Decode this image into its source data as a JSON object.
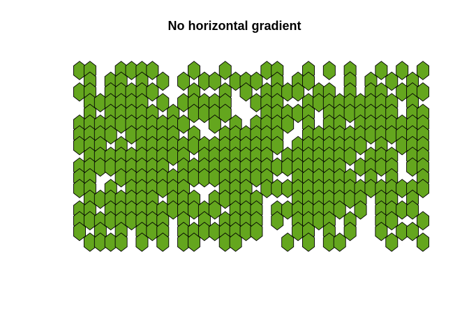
{
  "chart_data": {
    "type": "scatter",
    "title": "No horizontal gradient",
    "xlabel": "",
    "ylabel": "",
    "marker": "hexagon",
    "grid": false,
    "legend": "none",
    "colors": {
      "fill": "#64A61E",
      "stroke": "#000000"
    },
    "columns": 34,
    "rows": 17,
    "x_range": [
      1,
      34
    ],
    "y_range": [
      1,
      17
    ],
    "row_order": "row 1 at top",
    "occupancy_rows": [
      "1100111100010010001100101010010101",
      "0101101010101101110101100010101010",
      "1101111100010010101111011010110111",
      "0111111010111110011100111111111010",
      "0101111101011110001111101111111011",
      "1111111111100101011110101101111111",
      "1111011111010011111100111111111111",
      "1110101111111111111101111111010111",
      "0111111111101111111011111110111011",
      "1111111110111111111111111101111011",
      "1100111111111111111001111110101001",
      "1101011111100011101111111111111111",
      "0111111101110111110001111111011010",
      "1101111111111101110111111101011110",
      "1111111110101011110101111010011001",
      "1010101110111111110001101010010110",
      "0111101010110011000010101100001001"
    ]
  }
}
